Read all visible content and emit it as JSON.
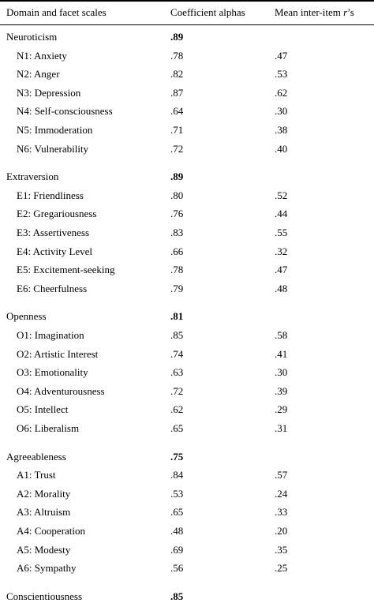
{
  "header": {
    "col1": "Domain and facet scales",
    "col2": "Coefficient alphas",
    "col3_prefix": "Mean inter-item ",
    "col3_italic": "r",
    "col3_suffix": "’s"
  },
  "domains": [
    {
      "name": "Neuroticism",
      "alpha": ".89",
      "facets": [
        {
          "name": "N1: Anxiety",
          "alpha": ".78",
          "r": ".47"
        },
        {
          "name": "N2: Anger",
          "alpha": ".82",
          "r": ".53"
        },
        {
          "name": "N3: Depression",
          "alpha": ".87",
          "r": ".62"
        },
        {
          "name": "N4: Self-consciousness",
          "alpha": ".64",
          "r": ".30"
        },
        {
          "name": "N5: Immoderation",
          "alpha": ".71",
          "r": ".38"
        },
        {
          "name": "N6: Vulnerability",
          "alpha": ".72",
          "r": ".40"
        }
      ]
    },
    {
      "name": "Extraversion",
      "alpha": ".89",
      "facets": [
        {
          "name": "E1: Friendliness",
          "alpha": ".80",
          "r": ".52"
        },
        {
          "name": "E2: Gregariousness",
          "alpha": ".76",
          "r": ".44"
        },
        {
          "name": "E3: Assertiveness",
          "alpha": ".83",
          "r": ".55"
        },
        {
          "name": "E4: Activity Level",
          "alpha": ".66",
          "r": ".32"
        },
        {
          "name": "E5: Excitement-seeking",
          "alpha": ".78",
          "r": ".47"
        },
        {
          "name": "E6: Cheerfulness",
          "alpha": ".79",
          "r": ".48"
        }
      ]
    },
    {
      "name": "Openness",
      "alpha": ".81",
      "facets": [
        {
          "name": "O1: Imagination",
          "alpha": ".85",
          "r": ".58"
        },
        {
          "name": "O2: Artistic Interest",
          "alpha": ".74",
          "r": ".41"
        },
        {
          "name": "O3: Emotionality",
          "alpha": ".63",
          "r": ".30"
        },
        {
          "name": "O4: Adventurousness",
          "alpha": ".72",
          "r": ".39"
        },
        {
          "name": "O5: Intellect",
          "alpha": ".62",
          "r": ".29"
        },
        {
          "name": "O6: Liberalism",
          "alpha": ".65",
          "r": ".31"
        }
      ]
    },
    {
      "name": "Agreeableness",
      "alpha": ".75",
      "facets": [
        {
          "name": "A1: Trust",
          "alpha": ".84",
          "r": ".57"
        },
        {
          "name": "A2: Morality",
          "alpha": ".53",
          "r": ".24"
        },
        {
          "name": "A3: Altruism",
          "alpha": ".65",
          "r": ".33"
        },
        {
          "name": "A4: Cooperation",
          "alpha": ".48",
          "r": ".20"
        },
        {
          "name": "A5: Modesty",
          "alpha": ".69",
          "r": ".35"
        },
        {
          "name": "A6: Sympathy",
          "alpha": ".56",
          "r": ".25"
        }
      ]
    },
    {
      "name": "Conscientiousness",
      "alpha": ".85",
      "facets": []
    }
  ]
}
